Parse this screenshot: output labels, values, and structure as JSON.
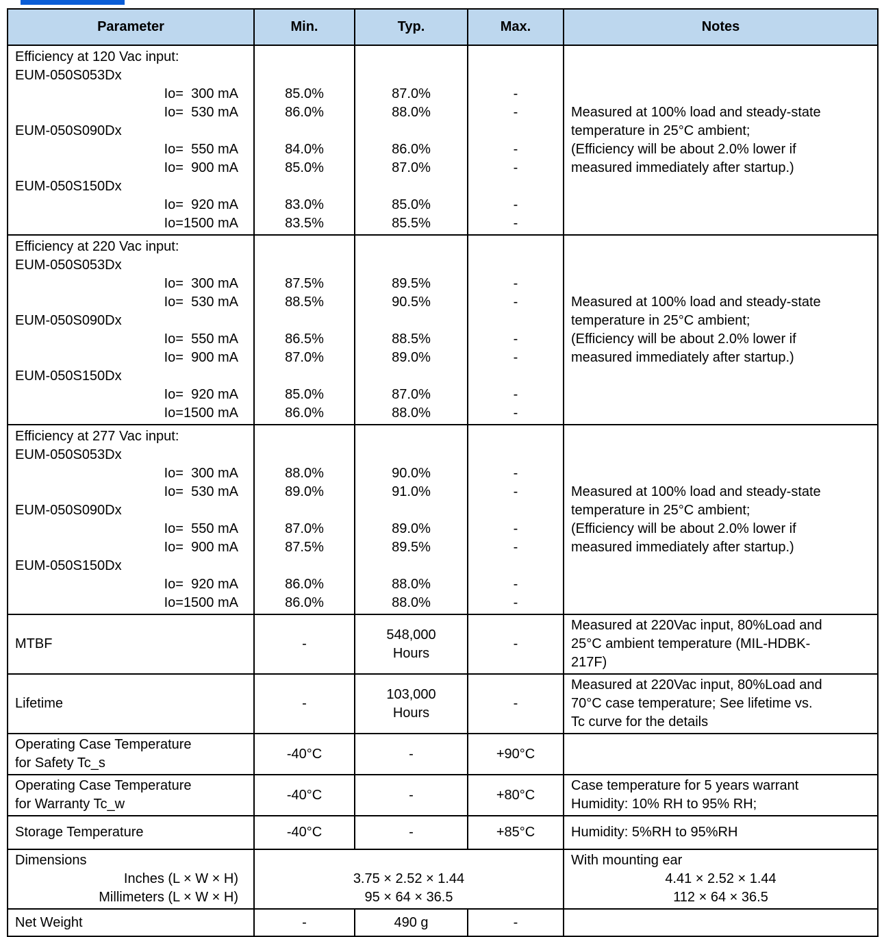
{
  "colors": {
    "header_bg": "#BDD7EE",
    "border": "#000000",
    "heading_fragment": "#0B5ED7"
  },
  "table": {
    "columns": [
      "Parameter",
      "Min.",
      "Typ.",
      "Max.",
      "Notes"
    ],
    "body": [
      {
        "type": "efficiency",
        "name": "efficiency-120vac",
        "lines": [
          {
            "kind": "title",
            "param": "Efficiency at 120 Vac input:"
          },
          {
            "kind": "model",
            "param": "EUM-050S053Dx"
          },
          {
            "kind": "io",
            "param": "Io=  300 mA",
            "min": "85.0%",
            "typ": "87.0%",
            "max": "-"
          },
          {
            "kind": "io",
            "param": "Io=  530 mA",
            "min": "86.0%",
            "typ": "88.0%",
            "max": "-"
          },
          {
            "kind": "model",
            "param": "EUM-050S090Dx"
          },
          {
            "kind": "io",
            "param": "Io=  550 mA",
            "min": "84.0%",
            "typ": "86.0%",
            "max": "-"
          },
          {
            "kind": "io",
            "param": "Io=  900 mA",
            "min": "85.0%",
            "typ": "87.0%",
            "max": "-"
          },
          {
            "kind": "model",
            "param": "EUM-050S150Dx"
          },
          {
            "kind": "io",
            "param": "Io=  920 mA",
            "min": "83.0%",
            "typ": "85.0%",
            "max": "-"
          },
          {
            "kind": "io",
            "param": "Io=1500 mA",
            "min": "83.5%",
            "typ": "85.5%",
            "max": "-"
          }
        ],
        "notes": "Measured at 100% load and steady-state\ntemperature in 25°C ambient;\n(Efficiency will be about 2.0% lower if\nmeasured immediately after startup.)"
      },
      {
        "type": "efficiency",
        "name": "efficiency-220vac",
        "lines": [
          {
            "kind": "title",
            "param": "Efficiency at 220 Vac input:"
          },
          {
            "kind": "model",
            "param": "EUM-050S053Dx"
          },
          {
            "kind": "io",
            "param": "Io=  300 mA",
            "min": "87.5%",
            "typ": "89.5%",
            "max": "-"
          },
          {
            "kind": "io",
            "param": "Io=  530 mA",
            "min": "88.5%",
            "typ": "90.5%",
            "max": "-"
          },
          {
            "kind": "model",
            "param": "EUM-050S090Dx"
          },
          {
            "kind": "io",
            "param": "Io=  550 mA",
            "min": "86.5%",
            "typ": "88.5%",
            "max": "-"
          },
          {
            "kind": "io",
            "param": "Io=  900 mA",
            "min": "87.0%",
            "typ": "89.0%",
            "max": "-"
          },
          {
            "kind": "model",
            "param": "EUM-050S150Dx"
          },
          {
            "kind": "io",
            "param": "Io=  920 mA",
            "min": "85.0%",
            "typ": "87.0%",
            "max": "-"
          },
          {
            "kind": "io",
            "param": "Io=1500 mA",
            "min": "86.0%",
            "typ": "88.0%",
            "max": "-"
          }
        ],
        "notes": "Measured at 100% load and steady-state\ntemperature in 25°C ambient;\n(Efficiency will be about 2.0% lower if\nmeasured immediately after startup.)"
      },
      {
        "type": "efficiency",
        "name": "efficiency-277vac",
        "lines": [
          {
            "kind": "title",
            "param": "Efficiency at 277 Vac input:"
          },
          {
            "kind": "model",
            "param": "EUM-050S053Dx"
          },
          {
            "kind": "io",
            "param": "Io=  300 mA",
            "min": "88.0%",
            "typ": "90.0%",
            "max": "-"
          },
          {
            "kind": "io",
            "param": "Io=  530 mA",
            "min": "89.0%",
            "typ": "91.0%",
            "max": "-"
          },
          {
            "kind": "model",
            "param": "EUM-050S090Dx"
          },
          {
            "kind": "io",
            "param": "Io=  550 mA",
            "min": "87.0%",
            "typ": "89.0%",
            "max": "-"
          },
          {
            "kind": "io",
            "param": "Io=  900 mA",
            "min": "87.5%",
            "typ": "89.5%",
            "max": "-"
          },
          {
            "kind": "model",
            "param": "EUM-050S150Dx"
          },
          {
            "kind": "io",
            "param": "Io=  920 mA",
            "min": "86.0%",
            "typ": "88.0%",
            "max": "-"
          },
          {
            "kind": "io",
            "param": "Io=1500 mA",
            "min": "86.0%",
            "typ": "88.0%",
            "max": "-"
          }
        ],
        "notes": "Measured at 100% load and steady-state\ntemperature in 25°C ambient;\n(Efficiency will be about 2.0% lower if\nmeasured immediately after startup.)"
      },
      {
        "type": "simple",
        "name": "mtbf",
        "param": "MTBF",
        "min": "-",
        "typ": "548,000\nHours",
        "max": "-",
        "notes": "Measured at 220Vac input, 80%Load and\n25°C ambient temperature (MIL-HDBK-\n217F)"
      },
      {
        "type": "simple",
        "name": "lifetime",
        "param": "Lifetime",
        "min": "-",
        "typ": "103,000\nHours",
        "max": "-",
        "notes": "Measured at 220Vac input, 80%Load and\n70°C case temperature; See lifetime vs.\nTc curve for the details"
      },
      {
        "type": "simple",
        "name": "operating-case-temperature-safety",
        "param": "Operating Case Temperature\nfor Safety Tc_s",
        "min": "-40°C",
        "typ": "-",
        "max": "+90°C",
        "notes": ""
      },
      {
        "type": "simple",
        "name": "operating-case-temperature-warranty",
        "param": "Operating Case Temperature\nfor Warranty Tc_w",
        "min": "-40°C",
        "typ": "-",
        "max": "+80°C",
        "notes": "Case temperature for 5 years warrant\nHumidity: 10% RH to 95% RH;"
      },
      {
        "type": "simple",
        "name": "storage-temperature",
        "param": "Storage Temperature",
        "min": "-40°C",
        "typ": "-",
        "max": "+85°C",
        "notes": "Humidity: 5%RH to 95%RH"
      },
      {
        "type": "dimensions",
        "name": "dimensions",
        "param_lines": [
          {
            "kind": "title",
            "text": "Dimensions"
          },
          {
            "kind": "right",
            "text": "Inches (L × W × H)"
          },
          {
            "kind": "right",
            "text": "Millimeters (L × W × H)"
          }
        ],
        "value_lines": [
          "",
          "3.75 × 2.52 × 1.44",
          "95 × 64 × 36.5"
        ],
        "notes_lines": [
          {
            "kind": "left",
            "text": "With mounting ear"
          },
          {
            "kind": "center",
            "text": "4.41 × 2.52 × 1.44"
          },
          {
            "kind": "center",
            "text": "112 × 64 × 36.5"
          }
        ]
      },
      {
        "type": "simple",
        "name": "net-weight",
        "param": "Net Weight",
        "min": "-",
        "typ": "490 g",
        "max": "-",
        "notes": ""
      }
    ]
  }
}
